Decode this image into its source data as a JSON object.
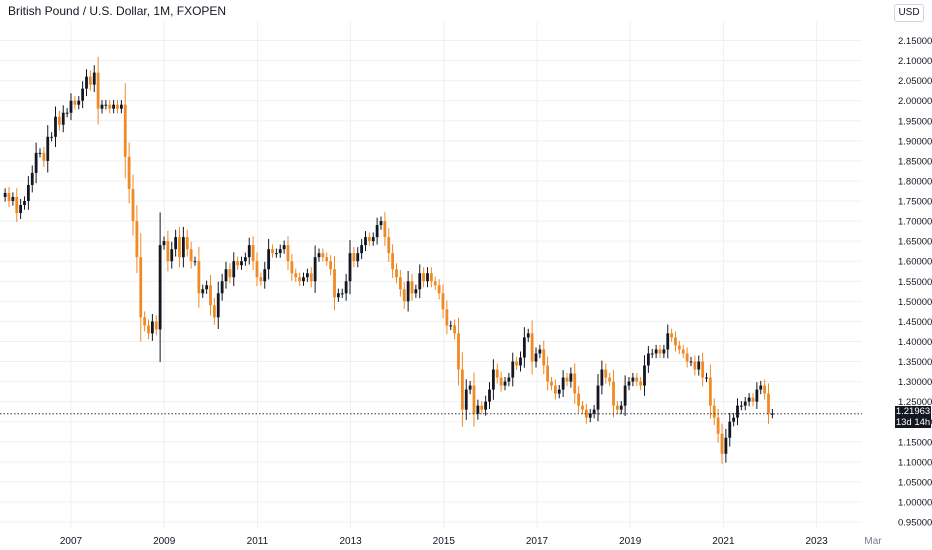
{
  "header": {
    "title": "British Pound / U.S. Dollar, 1M, FXOPEN",
    "currency": "USD"
  },
  "price_label": {
    "price": "1.21963",
    "countdown": "13d 14h"
  },
  "colors": {
    "up": "#131722",
    "down": "#f08a24",
    "grid": "#eef0f3",
    "axis_text": "#131722"
  },
  "chart_data": {
    "type": "candlestick",
    "title": "British Pound / U.S. Dollar, 1M, FXOPEN",
    "interval": "1M",
    "ylim": [
      0.94,
      2.17
    ],
    "yticks": [
      0.95,
      1.0,
      1.05,
      1.1,
      1.15,
      1.2,
      1.25,
      1.3,
      1.35,
      1.4,
      1.45,
      1.5,
      1.55,
      1.6,
      1.65,
      1.7,
      1.75,
      1.8,
      1.85,
      1.9,
      1.95,
      2.0,
      2.05,
      2.1,
      2.15
    ],
    "xticks": [
      "2007",
      "2009",
      "2011",
      "2013",
      "2015",
      "2017",
      "2019",
      "2021",
      "2023",
      "Mar"
    ],
    "x_start": "2005-08",
    "last_price": 1.21963,
    "close": [
      1.77,
      1.75,
      1.76,
      1.72,
      1.74,
      1.75,
      1.79,
      1.82,
      1.87,
      1.87,
      1.85,
      1.91,
      1.91,
      1.96,
      1.94,
      1.97,
      1.97,
      2.0,
      1.99,
      2.0,
      2.03,
      2.06,
      2.04,
      2.07,
      1.98,
      1.99,
      1.99,
      1.98,
      1.99,
      1.98,
      1.99,
      1.86,
      1.78,
      1.7,
      1.61,
      1.46,
      1.44,
      1.42,
      1.45,
      1.43,
      1.64,
      1.65,
      1.6,
      1.63,
      1.66,
      1.61,
      1.66,
      1.63,
      1.6,
      1.6,
      1.52,
      1.53,
      1.54,
      1.49,
      1.46,
      1.52,
      1.55,
      1.58,
      1.56,
      1.6,
      1.59,
      1.6,
      1.61,
      1.64,
      1.6,
      1.56,
      1.55,
      1.58,
      1.63,
      1.62,
      1.62,
      1.63,
      1.64,
      1.6,
      1.57,
      1.56,
      1.55,
      1.56,
      1.57,
      1.55,
      1.61,
      1.62,
      1.61,
      1.6,
      1.58,
      1.51,
      1.52,
      1.52,
      1.55,
      1.62,
      1.6,
      1.62,
      1.64,
      1.66,
      1.65,
      1.66,
      1.69,
      1.7,
      1.66,
      1.62,
      1.58,
      1.56,
      1.53,
      1.5,
      1.55,
      1.52,
      1.53,
      1.57,
      1.55,
      1.57,
      1.55,
      1.54,
      1.52,
      1.48,
      1.44,
      1.44,
      1.42,
      1.33,
      1.23,
      1.28,
      1.29,
      1.22,
      1.24,
      1.23,
      1.25,
      1.28,
      1.33,
      1.31,
      1.29,
      1.3,
      1.31,
      1.35,
      1.34,
      1.36,
      1.41,
      1.42,
      1.35,
      1.37,
      1.38,
      1.34,
      1.3,
      1.29,
      1.27,
      1.28,
      1.31,
      1.3,
      1.32,
      1.27,
      1.24,
      1.23,
      1.21,
      1.22,
      1.23,
      1.29,
      1.33,
      1.31,
      1.3,
      1.24,
      1.23,
      1.24,
      1.29,
      1.3,
      1.31,
      1.3,
      1.29,
      1.34,
      1.37,
      1.37,
      1.38,
      1.37,
      1.38,
      1.42,
      1.41,
      1.39,
      1.38,
      1.37,
      1.35,
      1.35,
      1.33,
      1.35,
      1.31,
      1.31,
      1.24,
      1.21,
      1.17,
      1.12,
      1.16,
      1.2,
      1.21,
      1.24,
      1.24,
      1.25,
      1.26,
      1.25,
      1.28,
      1.29,
      1.27,
      1.22,
      1.22
    ]
  }
}
